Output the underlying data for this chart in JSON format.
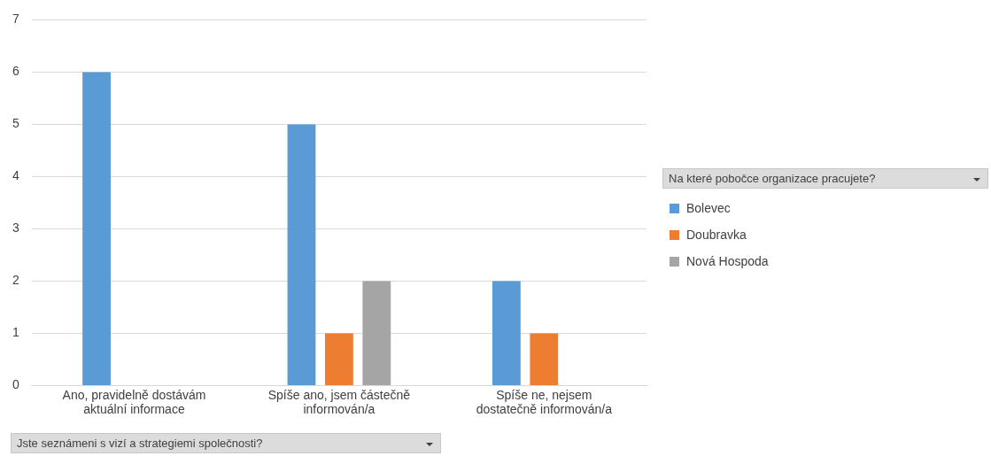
{
  "chart_data": {
    "type": "bar",
    "xlabel": "Jste seznámeni s vizí a strategiemi společnosti?",
    "legend_title": "Na které pobočce organizace pracujete?",
    "categories": [
      "Ano, pravidelně dostávám aktuální informace",
      "Spíše ano, jsem částečně informován/a",
      "Spíše ne, nejsem dostatečně informován/a"
    ],
    "series": [
      {
        "name": "Bolevec",
        "color": "#5b9bd5",
        "values": [
          6,
          5,
          2
        ]
      },
      {
        "name": "Doubravka",
        "color": "#ed7d31",
        "values": [
          null,
          1,
          1
        ]
      },
      {
        "name": "Nová Hospoda",
        "color": "#a5a5a5",
        "values": [
          null,
          2,
          null
        ]
      }
    ],
    "ylim": [
      0,
      7
    ],
    "yticks": [
      0,
      1,
      2,
      3,
      4,
      5,
      6,
      7
    ],
    "grid": "y",
    "legend": "right"
  }
}
